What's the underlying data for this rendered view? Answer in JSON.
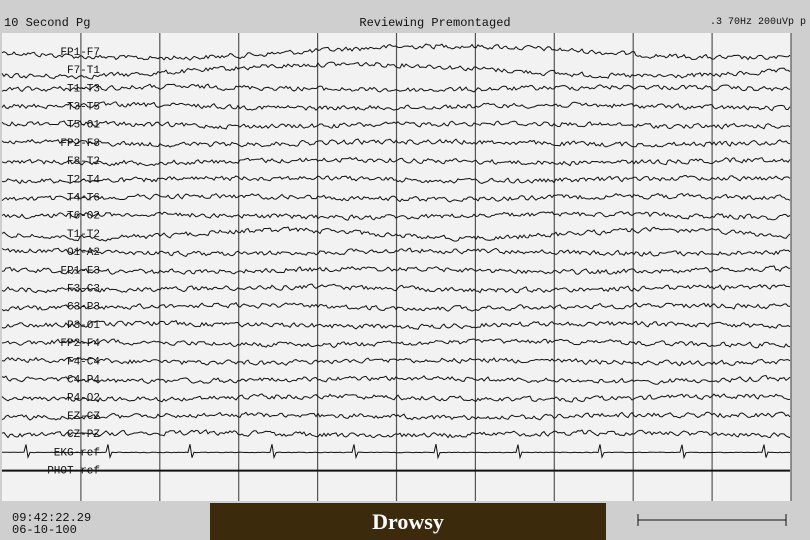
{
  "header": {
    "page": "10 Second Pg",
    "mode": "Reviewing Premontaged",
    "filter": ".3 70Hz 200uVp p"
  },
  "channels": [
    "FP1-F7",
    "F7-T1",
    "T1-T3",
    "T3-T5",
    "T5-O1",
    "FP2-F8",
    "F8-T2",
    "T2-T4",
    "T4-T6",
    "T6-O2",
    "T1-T2",
    "O1-A2",
    "FP1-F3",
    "F3-C3",
    "C3-P3",
    "P3-O1",
    "FP2-F4",
    "F4-C4",
    "C4-P4",
    "P4-O2",
    "FZ-CZ",
    "CZ-PZ",
    "EKG-ref",
    "PHOT-ref"
  ],
  "footer": {
    "time": "09:42:22.29",
    "date": "06-10-100",
    "state": "Drowsy"
  }
}
